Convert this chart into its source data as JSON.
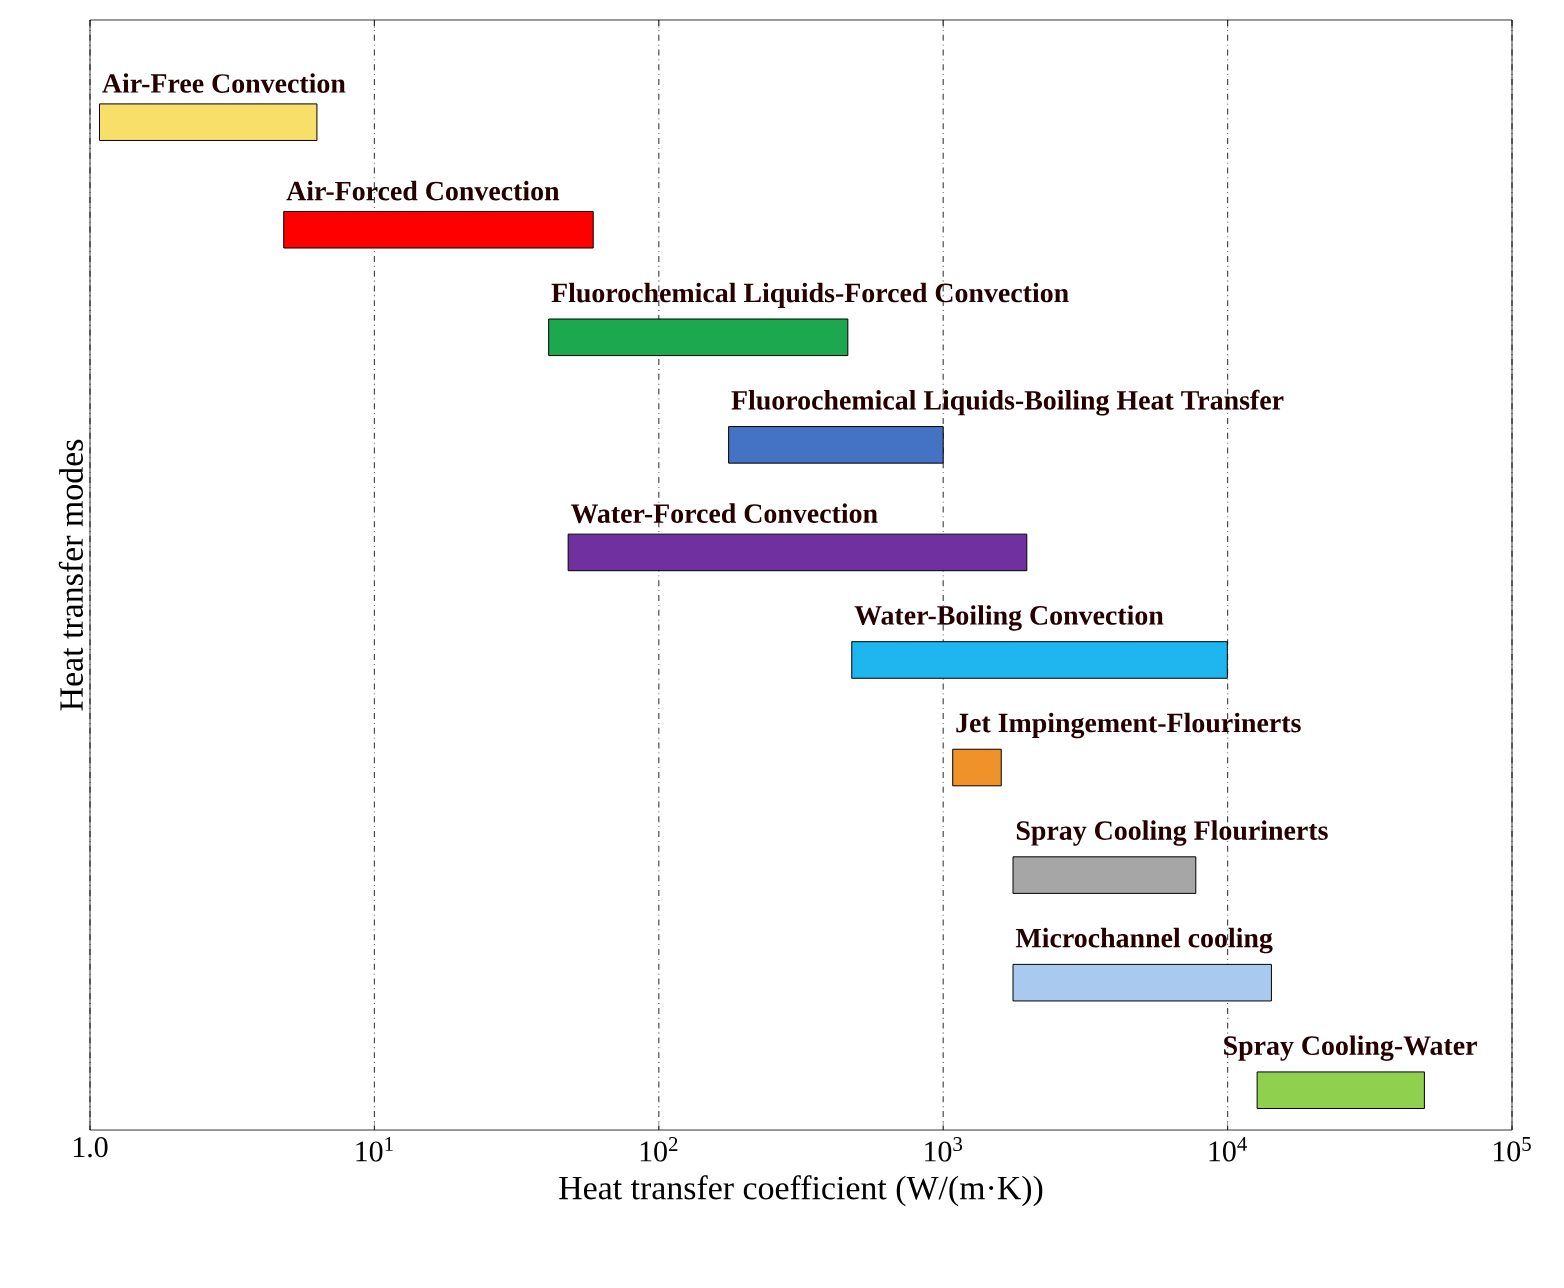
{
  "chart_data": {
    "type": "bar",
    "orientation": "horizontal",
    "log": "x",
    "xlabel": "Heat transfer coefficient (W/(m·K))",
    "ylabel": "Heat transfer modes",
    "categories": [
      "Air-Free Convection",
      "Air-Forced Convection",
      "Fluorochemical Liquids-Forced Convection",
      "Fluorochemical Liquids-Boiling Heat Transfer",
      "Water-Forced Convection",
      "Water-Boiling Convection",
      "Jet Impingement-Flourinerts",
      "Spray Cooling Flourinerts",
      "Microchannel cooling",
      "Spray Cooling-Water"
    ],
    "base": [
      1.08,
      4.8,
      41,
      176,
      48,
      477,
      1080,
      1760,
      1760,
      12700
    ],
    "values": [
      5.2,
      54,
      421,
      824,
      1920,
      9500,
      520,
      5970,
      12500,
      36500
    ],
    "colors": [
      "#f7df6a",
      "#ff0000",
      "#1ba84f",
      "#4472c4",
      "#7030a0",
      "#1fb6f0",
      "#f0922a",
      "#a6a6a6",
      "#a9c9ee",
      "#8fd14f"
    ],
    "xlim": [
      1,
      100000
    ],
    "xticks": [
      {
        "value": 1,
        "label": "1.0"
      },
      {
        "value": 10,
        "label": "10$^{1}$"
      },
      {
        "value": 100,
        "label": "10$^{2}$"
      },
      {
        "value": 1000,
        "label": "10$^{3}$"
      },
      {
        "value": 10000,
        "label": "10$^{4}$"
      },
      {
        "value": 100000,
        "label": "10$^{5}$"
      }
    ],
    "grid": "x",
    "tick_labels": "x"
  }
}
